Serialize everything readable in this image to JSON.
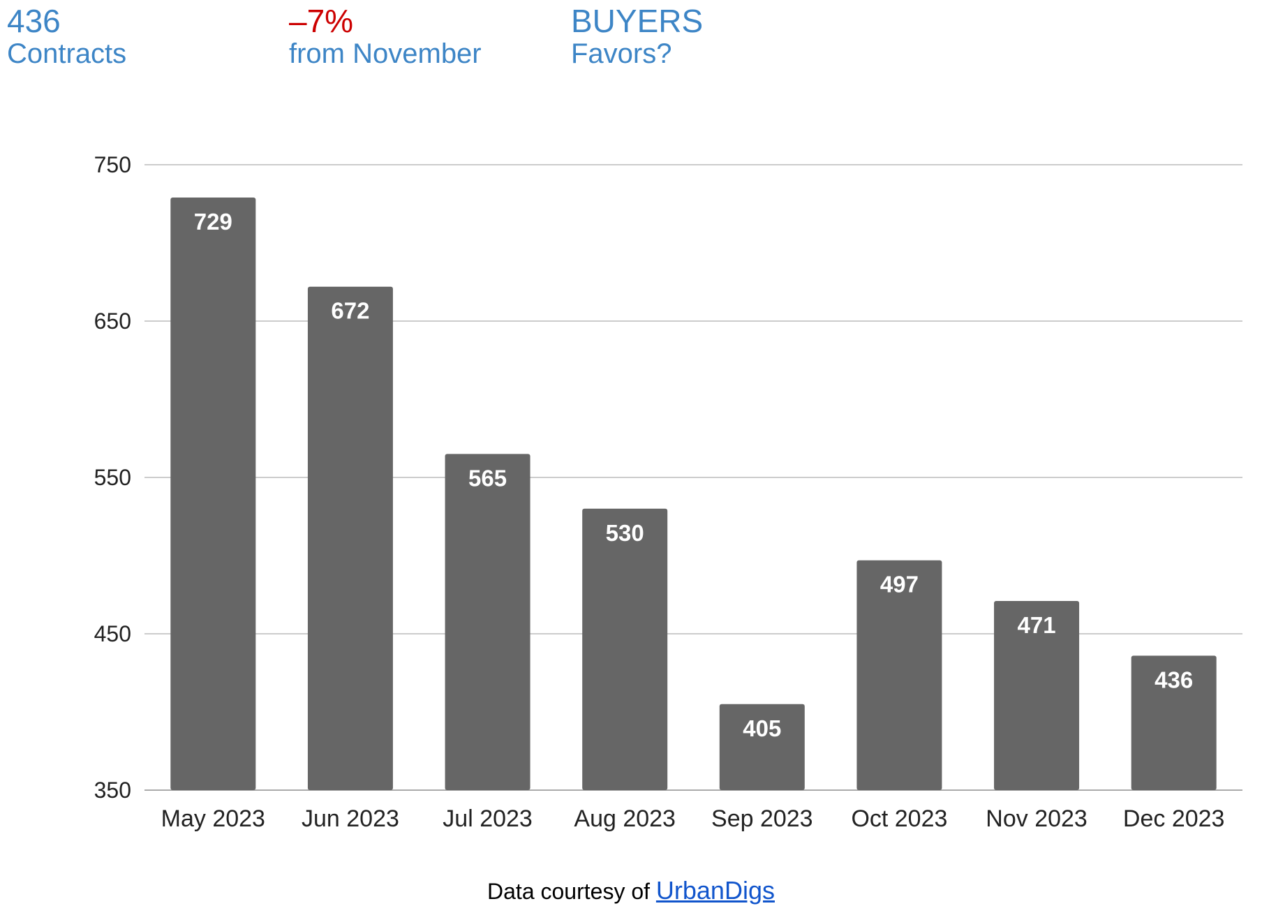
{
  "stats": [
    {
      "value": "436",
      "label": "Contracts",
      "value_color": "#3d85c6"
    },
    {
      "value": "–7%",
      "label": "from November",
      "value_color": "#cc0000"
    },
    {
      "value": "BUYERS",
      "label": "Favors?",
      "value_color": "#3d85c6"
    }
  ],
  "footer": {
    "prefix": "Data courtesy of",
    "link_text": "UrbanDigs",
    "link_color": "#1155cc"
  },
  "chart_data": {
    "type": "bar",
    "title": "",
    "xlabel": "",
    "ylabel": "",
    "categories": [
      "May 2023",
      "Jun 2023",
      "Jul 2023",
      "Aug 2023",
      "Sep 2023",
      "Oct 2023",
      "Nov 2023",
      "Dec 2023"
    ],
    "values": [
      729,
      672,
      565,
      530,
      405,
      497,
      471,
      436
    ],
    "ylim": [
      350,
      750
    ],
    "yticks": [
      350,
      450,
      550,
      650,
      750
    ],
    "bar_color": "#666666",
    "grid_color": "#cccccc",
    "grid": true,
    "data_labels": true
  }
}
